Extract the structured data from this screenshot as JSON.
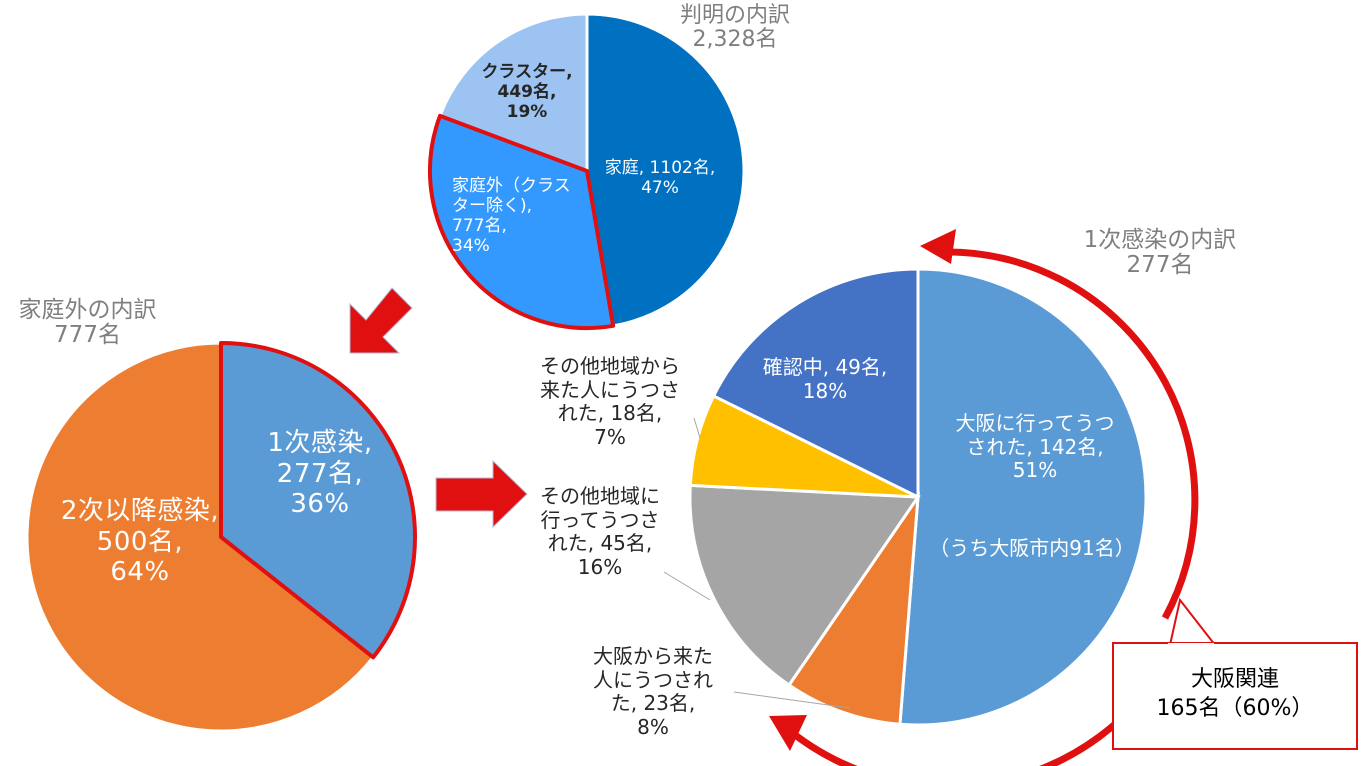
{
  "chart_data": [
    {
      "type": "pie",
      "id": "top",
      "title": "判明の内訳",
      "subtitle": "2,328名",
      "slices": [
        {
          "name": "家庭",
          "count": "1102名",
          "percent": "47%",
          "value": 1102,
          "color": "#0070c0",
          "label_lines": [
            "家庭, 1102名,",
            "47%"
          ]
        },
        {
          "name": "家庭外（クラスター除く）",
          "count": "777名",
          "percent": "34%",
          "value": 777,
          "color": "#3399ff",
          "highlighted": true,
          "label_lines": [
            "家庭外（クラス",
            "ター除く),",
            "777名,",
            "34%"
          ]
        },
        {
          "name": "クラスター",
          "count": "449名",
          "percent": "19%",
          "value": 449,
          "color": "#9dc3f2",
          "label_lines": [
            "クラスター,",
            "449名,",
            "19%"
          ]
        }
      ]
    },
    {
      "type": "pie",
      "id": "left",
      "title": "家庭外の内訳",
      "subtitle": "777名",
      "slices": [
        {
          "name": "1次感染",
          "count": "277名",
          "percent": "36%",
          "value": 277,
          "color": "#5b9bd5",
          "highlighted": true,
          "label_lines": [
            "1次感染,",
            "277名,",
            "36%"
          ]
        },
        {
          "name": "2次以降感染",
          "count": "500名",
          "percent": "64%",
          "value": 500,
          "color": "#ed7d31",
          "label_lines": [
            "2次以降感染,",
            "500名,",
            "64%"
          ]
        }
      ]
    },
    {
      "type": "pie",
      "id": "right",
      "title": "1次感染の内訳",
      "subtitle": "277名",
      "slices": [
        {
          "name": "大阪に行ってうつされた",
          "count": "142名",
          "percent": "51%",
          "value": 142,
          "color": "#5b9bd5",
          "label_lines": [
            "大阪に行ってうつ",
            "された, 142名,",
            "51%"
          ],
          "note": "（うち大阪市内91名）"
        },
        {
          "name": "大阪から来た人にうつされた",
          "count": "23名",
          "percent": "8%",
          "value": 23,
          "color": "#ed7d31",
          "label_lines": [
            "大阪から来た",
            "人にうつされ",
            "た, 23名,",
            "8%"
          ]
        },
        {
          "name": "その他地域に行ってうつされた",
          "count": "45名",
          "percent": "16%",
          "value": 45,
          "color": "#a5a5a5",
          "label_lines": [
            "その他地域に",
            "行ってうつさ",
            "れた, 45名,",
            "16%"
          ]
        },
        {
          "name": "その他地域から来た人にうつされた",
          "count": "18名",
          "percent": "7%",
          "value": 18,
          "color": "#ffc000",
          "label_lines": [
            "その他地域から",
            "来た人にうつさ",
            "れた, 18名,",
            "7%"
          ]
        },
        {
          "name": "確認中",
          "count": "49名",
          "percent": "18%",
          "value": 49,
          "color": "#4472c4",
          "label_lines": [
            "確認中, 49名,",
            "18%"
          ]
        }
      ]
    }
  ],
  "callout": {
    "title": "大阪関連",
    "value": "165名（60%）"
  },
  "colors": {
    "highlight_border": "#e01010",
    "arrow": "#e01010",
    "title_text": "#7f7f7f"
  }
}
